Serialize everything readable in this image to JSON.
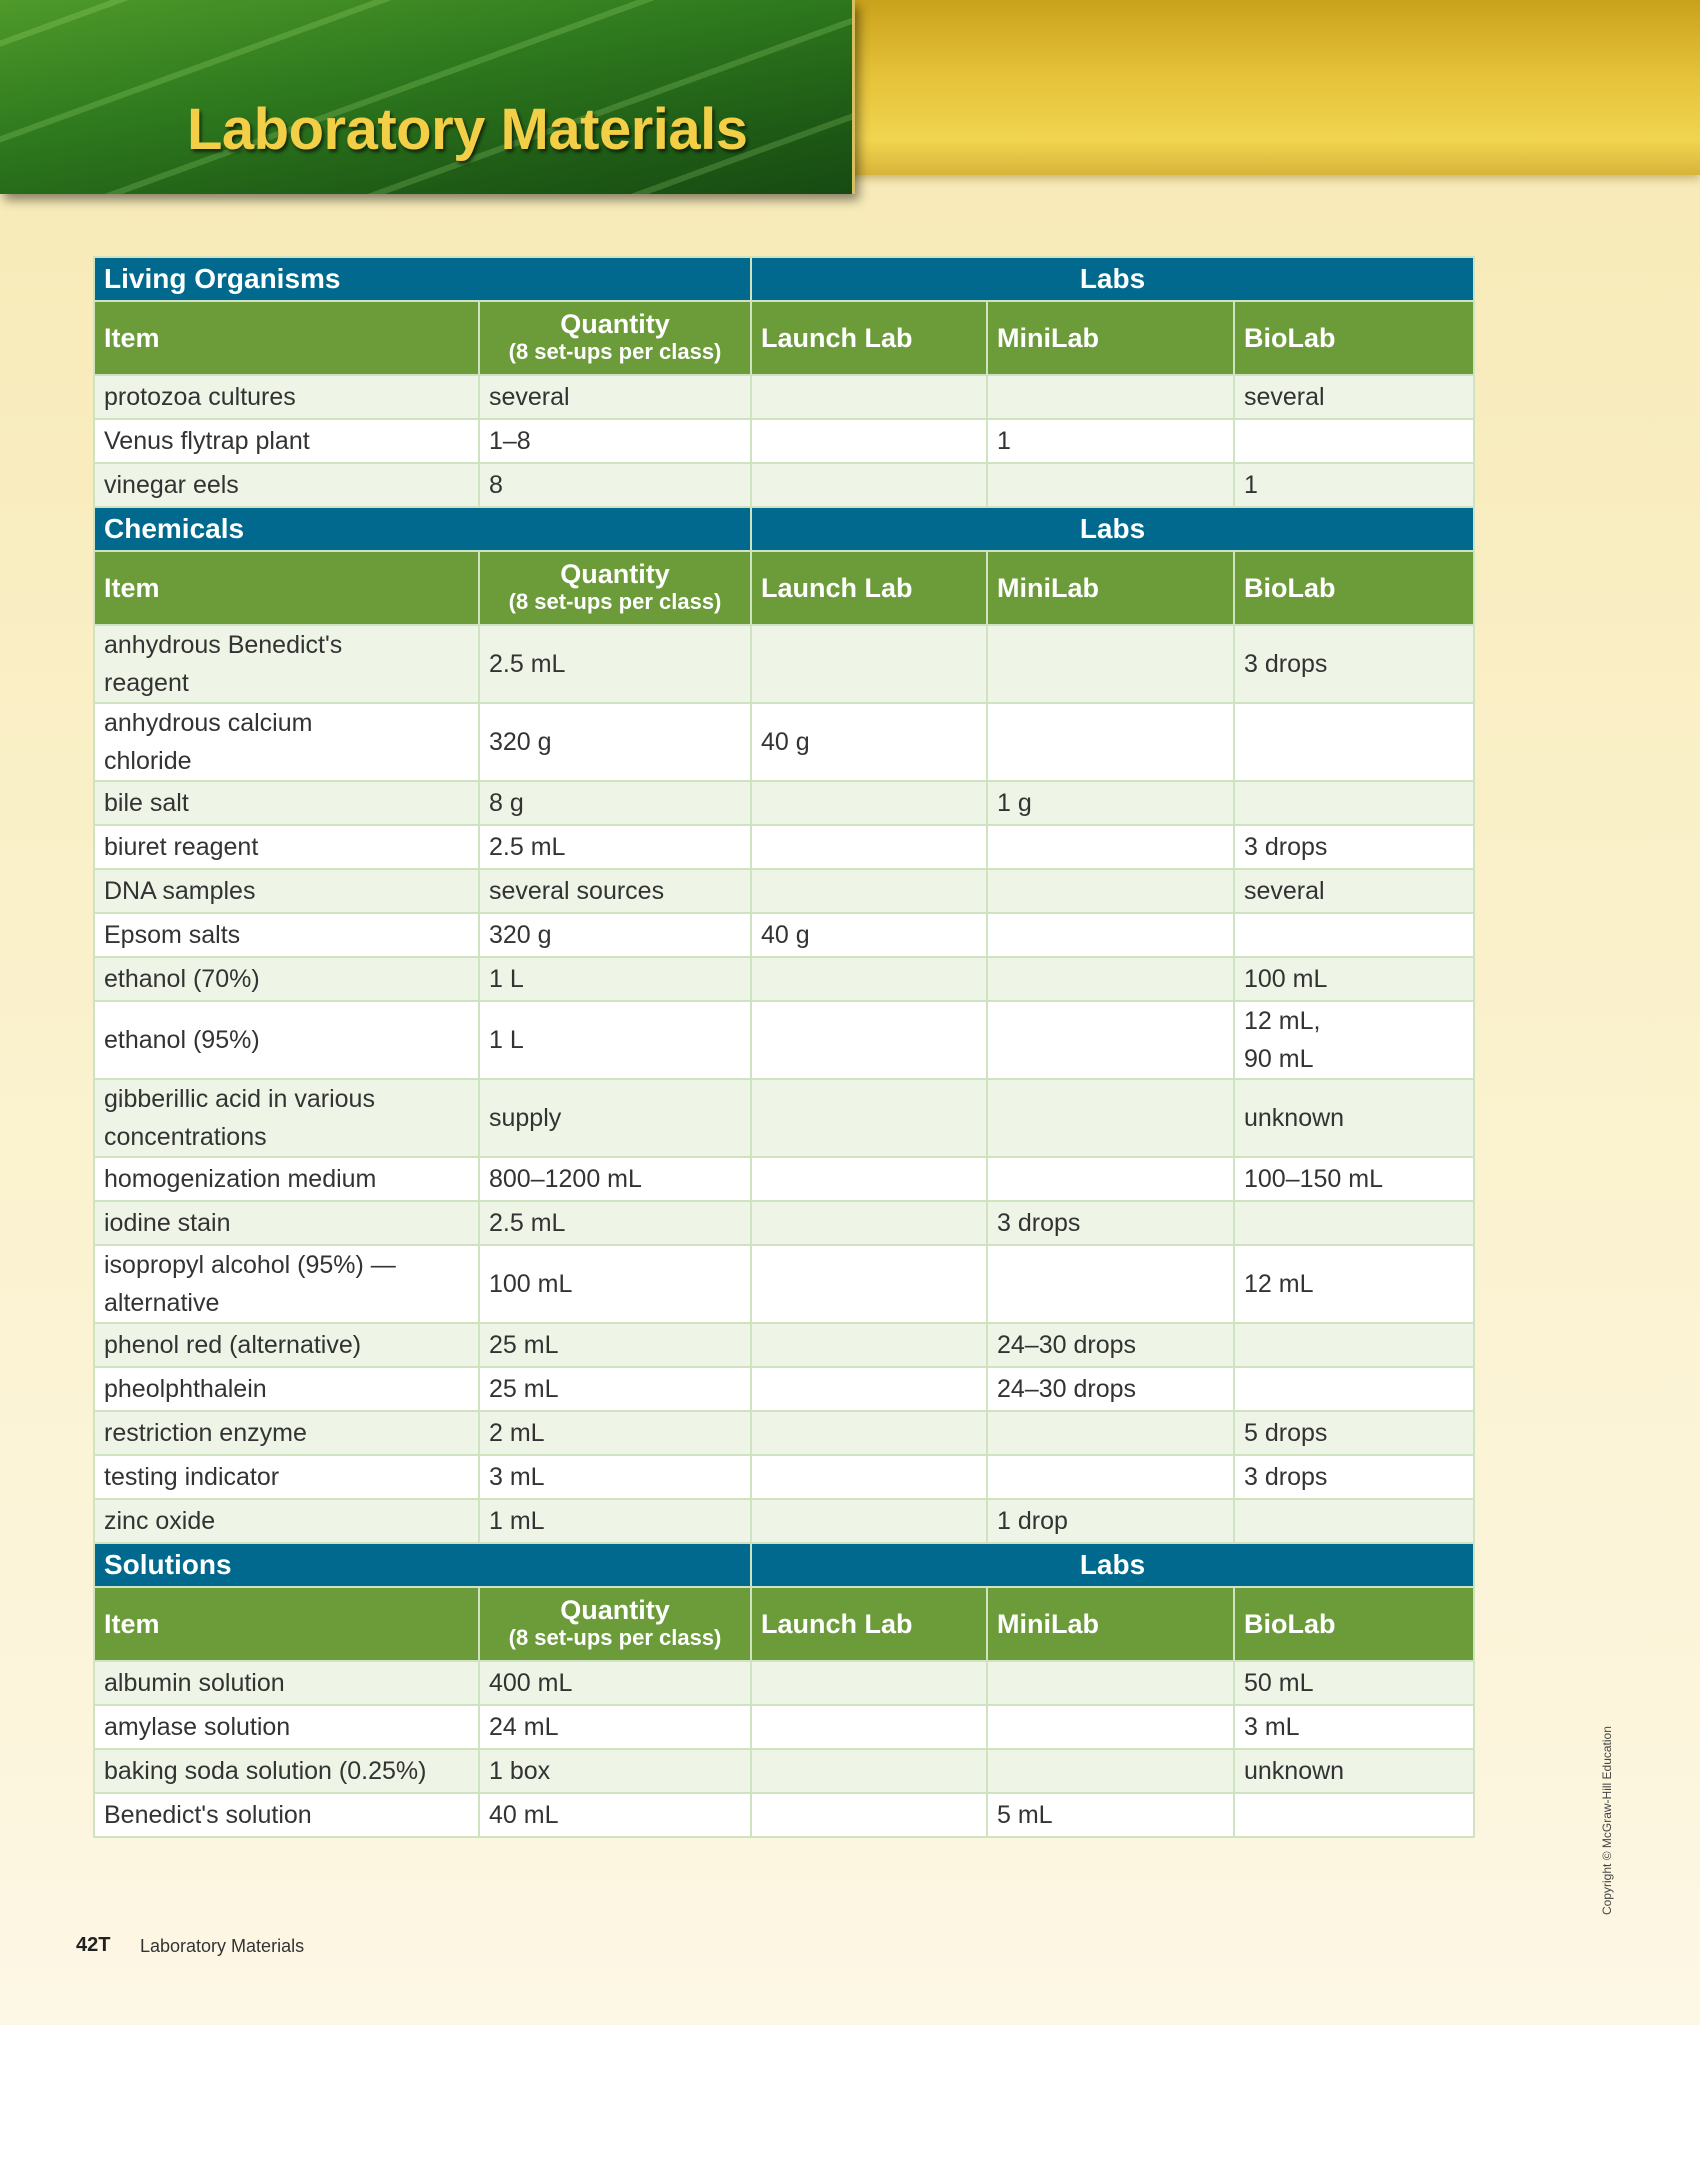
{
  "header": {
    "title": "Laboratory Materials"
  },
  "table": {
    "sections": [
      {
        "title": "Living Organisms",
        "labs_label": "Labs",
        "columns": {
          "item": "Item",
          "quantity": "Quantity",
          "quantity_note": "(8 set-ups per class)",
          "launch": "Launch Lab",
          "mini": "MiniLab",
          "bio": "BioLab"
        },
        "rows": [
          [
            "protozoa cultures",
            "several",
            null,
            null,
            "several"
          ],
          [
            "Venus flytrap plant",
            "1–8",
            null,
            "1",
            null
          ],
          [
            "vinegar eels",
            "8",
            null,
            null,
            "1"
          ]
        ]
      },
      {
        "title": "Chemicals",
        "labs_label": "Labs",
        "columns": {
          "item": "Item",
          "quantity": "Quantity",
          "quantity_note": "(8 set-ups per class)",
          "launch": "Launch Lab",
          "mini": "MiniLab",
          "bio": "BioLab"
        },
        "rows": [
          [
            "anhydrous Benedict's\nreagent",
            "2.5 mL",
            null,
            null,
            "3 drops"
          ],
          [
            "anhydrous calcium\nchloride",
            "320 g",
            "40 g",
            null,
            null
          ],
          [
            "bile salt",
            "8 g",
            null,
            "1 g",
            null
          ],
          [
            "biuret reagent",
            "2.5 mL",
            null,
            null,
            "3 drops"
          ],
          [
            "DNA samples",
            "several sources",
            null,
            null,
            "several"
          ],
          [
            "Epsom salts",
            "320 g",
            "40 g",
            null,
            null
          ],
          [
            "ethanol (70%)",
            "1 L",
            null,
            null,
            "100 mL"
          ],
          [
            "ethanol (95%)",
            "1 L",
            null,
            null,
            "12 mL,\n90 mL"
          ],
          [
            "gibberillic acid in various\nconcentrations",
            "supply",
            null,
            null,
            "unknown"
          ],
          [
            "homogenization medium",
            "800–1200 mL",
            null,
            null,
            "100–150 mL"
          ],
          [
            "iodine stain",
            "2.5 mL",
            null,
            "3 drops",
            null
          ],
          [
            "isopropyl alcohol (95%) —\nalternative",
            "100 mL",
            null,
            null,
            "12 mL"
          ],
          [
            "phenol red (alternative)",
            "25 mL",
            null,
            "24–30 drops",
            null
          ],
          [
            "pheolphthalein",
            "25 mL",
            null,
            "24–30 drops",
            null
          ],
          [
            "restriction enzyme",
            "2 mL",
            null,
            null,
            "5 drops"
          ],
          [
            "testing indicator",
            "3 mL",
            null,
            null,
            "3 drops"
          ],
          [
            "zinc oxide",
            "1 mL",
            null,
            "1 drop",
            null
          ]
        ]
      },
      {
        "title": "Solutions",
        "labs_label": "Labs",
        "columns": {
          "item": "Item",
          "quantity": "Quantity",
          "quantity_note": "(8 set-ups per class)",
          "launch": "Launch Lab",
          "mini": "MiniLab",
          "bio": "BioLab"
        },
        "rows": [
          [
            "albumin solution",
            "400 mL",
            null,
            null,
            "50 mL"
          ],
          [
            "amylase solution",
            "24 mL",
            null,
            null,
            "3 mL"
          ],
          [
            "baking soda solution (0.25%)",
            "1 box",
            null,
            null,
            "unknown"
          ],
          [
            "Benedict's solution",
            "40 mL",
            null,
            "5 mL",
            null
          ]
        ]
      }
    ]
  },
  "footer": {
    "page": "42T",
    "label": "Laboratory Materials",
    "copyright": "Copyright © McGraw-Hill Education"
  }
}
